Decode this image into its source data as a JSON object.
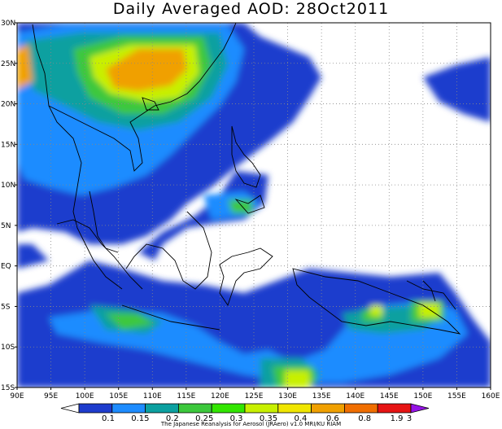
{
  "title": "Daily Averaged AOD: 28Oct2011",
  "credit": "The Japanese Reanalysis for Aerosol (JRAero) v1.0 MRI/KU RIAM",
  "map": {
    "lon_range": [
      90,
      160
    ],
    "lat_range": [
      -15,
      30
    ],
    "x_ticks": [
      "90E",
      "95E",
      "100E",
      "105E",
      "110E",
      "115E",
      "120E",
      "125E",
      "130E",
      "135E",
      "140E",
      "145E",
      "150E",
      "155E",
      "160E"
    ],
    "y_ticks": [
      "30N",
      "25N",
      "20N",
      "15N",
      "10N",
      "5N",
      "EQ",
      "5S",
      "10S",
      "15S"
    ],
    "grid": "dotted"
  },
  "colorbar": {
    "labels": [
      "0.1",
      "0.15",
      "0.2",
      "0.25",
      "0.3",
      "0.35",
      "0.4",
      "0.6",
      "0.8",
      "1.9",
      "3"
    ],
    "colors": [
      "#ffffff",
      "#1e3ccd",
      "#1e8cff",
      "#0ca0a0",
      "#3cc83c",
      "#32e600",
      "#c8f000",
      "#f0e600",
      "#f0a000",
      "#f06e00",
      "#e61414",
      "#9614e6"
    ]
  }
}
